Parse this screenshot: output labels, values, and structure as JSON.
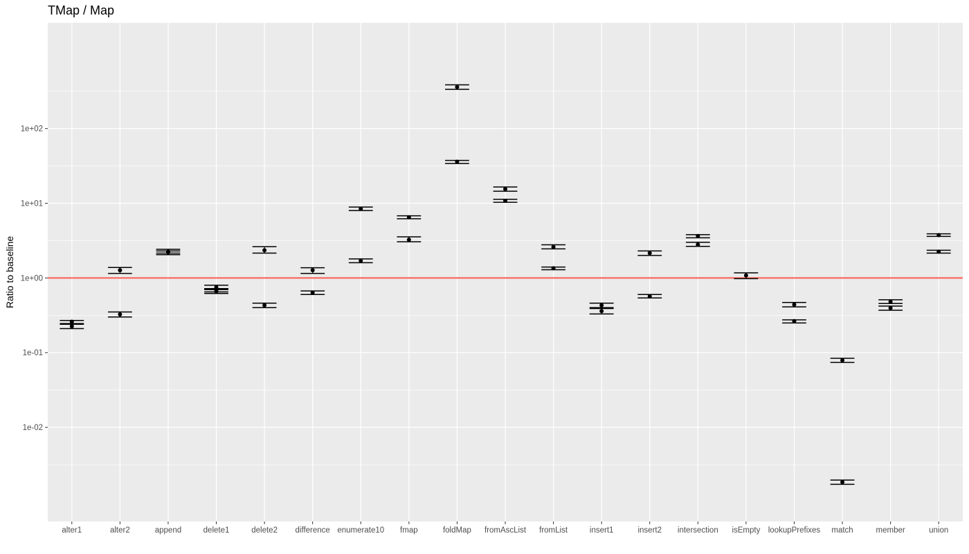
{
  "chart_data": {
    "type": "scatter",
    "title": "TMap / Map",
    "xlabel": "",
    "ylabel": "Ratio to baseline",
    "y_scale": "log10",
    "ylim": [
      0.00055,
      2600
    ],
    "y_ticks": [
      0.01,
      0.1,
      1,
      10,
      100
    ],
    "y_tick_labels": [
      "1e-02",
      "1e-01",
      "1e+00",
      "1e+01",
      "1e+02"
    ],
    "grid": true,
    "background": "#ebebeb",
    "grid_color": "#ffffff",
    "reference_line": {
      "value": 1,
      "color": "#f8766d"
    },
    "point_color": "#000000",
    "categories": [
      "alter1",
      "alter2",
      "append",
      "delete1",
      "delete2",
      "difference",
      "enumerate10",
      "fmap",
      "foldMap",
      "fromAscList",
      "fromList",
      "insert1",
      "insert2",
      "intersection",
      "isEmpty",
      "lookupPrefixes",
      "match",
      "member",
      "union"
    ],
    "points": [
      {
        "category": "alter1",
        "y": 0.26,
        "ymin": 0.245,
        "ymax": 0.27
      },
      {
        "category": "alter1",
        "y": 0.225,
        "ymin": 0.21,
        "ymax": 0.24
      },
      {
        "category": "alter2",
        "y": 1.27,
        "ymin": 1.15,
        "ymax": 1.38
      },
      {
        "category": "alter2",
        "y": 0.325,
        "ymin": 0.3,
        "ymax": 0.35
      },
      {
        "category": "append",
        "y": 2.25,
        "ymin": 2.15,
        "ymax": 2.42
      },
      {
        "category": "append",
        "y": 2.2,
        "ymin": 2.05,
        "ymax": 2.3
      },
      {
        "category": "delete1",
        "y": 0.75,
        "ymin": 0.7,
        "ymax": 0.8
      },
      {
        "category": "delete1",
        "y": 0.7,
        "ymin": 0.65,
        "ymax": 0.72
      },
      {
        "category": "delete1",
        "y": 0.66,
        "ymin": 0.62,
        "ymax": 0.7
      },
      {
        "category": "delete2",
        "y": 2.35,
        "ymin": 2.15,
        "ymax": 2.62
      },
      {
        "category": "delete2",
        "y": 0.43,
        "ymin": 0.4,
        "ymax": 0.46
      },
      {
        "category": "difference",
        "y": 1.27,
        "ymin": 1.15,
        "ymax": 1.37
      },
      {
        "category": "difference",
        "y": 0.635,
        "ymin": 0.6,
        "ymax": 0.67
      },
      {
        "category": "enumerate10",
        "y": 8.4,
        "ymin": 8.0,
        "ymax": 8.9
      },
      {
        "category": "enumerate10",
        "y": 1.7,
        "ymin": 1.6,
        "ymax": 1.8
      },
      {
        "category": "fmap",
        "y": 6.5,
        "ymin": 6.2,
        "ymax": 6.8
      },
      {
        "category": "fmap",
        "y": 3.25,
        "ymin": 3.05,
        "ymax": 3.55
      },
      {
        "category": "foldMap",
        "y": 360,
        "ymin": 335,
        "ymax": 385
      },
      {
        "category": "foldMap",
        "y": 36,
        "ymin": 34,
        "ymax": 37.5
      },
      {
        "category": "fromAscList",
        "y": 15.5,
        "ymin": 14.5,
        "ymax": 16.5
      },
      {
        "category": "fromAscList",
        "y": 10.8,
        "ymin": 10.3,
        "ymax": 11.3
      },
      {
        "category": "fromList",
        "y": 2.6,
        "ymin": 2.45,
        "ymax": 2.78
      },
      {
        "category": "fromList",
        "y": 1.35,
        "ymin": 1.29,
        "ymax": 1.4
      },
      {
        "category": "insert1",
        "y": 0.43,
        "ymin": 0.4,
        "ymax": 0.46
      },
      {
        "category": "insert1",
        "y": 0.36,
        "ymin": 0.33,
        "ymax": 0.39
      },
      {
        "category": "insert2",
        "y": 2.15,
        "ymin": 2.0,
        "ymax": 2.3
      },
      {
        "category": "insert2",
        "y": 0.57,
        "ymin": 0.54,
        "ymax": 0.6
      },
      {
        "category": "intersection",
        "y": 3.65,
        "ymin": 3.45,
        "ymax": 3.8
      },
      {
        "category": "intersection",
        "y": 2.8,
        "ymin": 2.65,
        "ymax": 3.0
      },
      {
        "category": "isEmpty",
        "y": 1.08,
        "ymin": 0.98,
        "ymax": 1.17
      },
      {
        "category": "lookupPrefixes",
        "y": 0.44,
        "ymin": 0.41,
        "ymax": 0.47
      },
      {
        "category": "lookupPrefixes",
        "y": 0.265,
        "ymin": 0.25,
        "ymax": 0.275
      },
      {
        "category": "match",
        "y": 0.079,
        "ymin": 0.074,
        "ymax": 0.084
      },
      {
        "category": "match",
        "y": 0.00185,
        "ymin": 0.00173,
        "ymax": 0.00197
      },
      {
        "category": "member",
        "y": 0.48,
        "ymin": 0.455,
        "ymax": 0.51
      },
      {
        "category": "member",
        "y": 0.395,
        "ymin": 0.37,
        "ymax": 0.42
      },
      {
        "category": "union",
        "y": 3.75,
        "ymin": 3.6,
        "ymax": 3.9
      },
      {
        "category": "union",
        "y": 2.25,
        "ymin": 2.15,
        "ymax": 2.35
      }
    ]
  }
}
